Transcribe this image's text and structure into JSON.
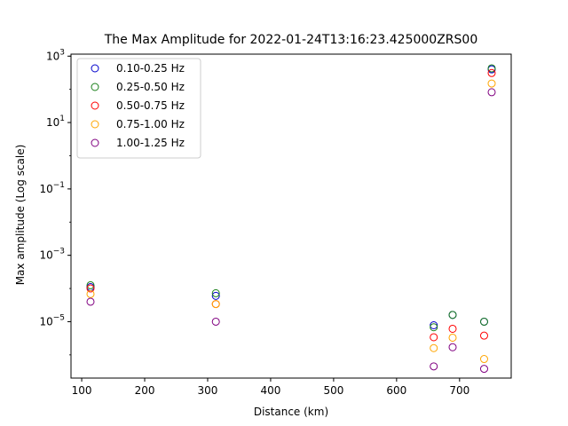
{
  "chart_data": {
    "type": "scatter",
    "title": "The Max Amplitude for 2022-01-24T13:16:23.425000ZRS00",
    "xlabel": "Distance (km)",
    "ylabel": "Max amplitude (Log scale)",
    "xlim": [
      83,
      782
    ],
    "ylim": [
      2e-07,
      1150
    ],
    "yscale": "log",
    "xticks": [
      100,
      200,
      300,
      400,
      500,
      600,
      700
    ],
    "yticks": [
      {
        "value": 1000,
        "base": "10",
        "exp": "3"
      },
      {
        "value": 10,
        "base": "10",
        "exp": "1"
      },
      {
        "value": 0.1,
        "base": "10",
        "exp": "−1"
      },
      {
        "value": 0.001,
        "base": "10",
        "exp": "−3"
      },
      {
        "value": 1e-05,
        "base": "10",
        "exp": "−5"
      }
    ],
    "grid": false,
    "legend_position": "top-left",
    "marker": "open-circle",
    "series": [
      {
        "name": "0.10-0.25 Hz",
        "color": "#0000cc",
        "x": [
          114,
          313,
          659,
          689,
          739,
          751
        ],
        "y": [
          0.00011,
          6e-05,
          7.8e-06,
          1.6e-05,
          1e-05,
          400
        ]
      },
      {
        "name": "0.25-0.50 Hz",
        "color": "#1a7f1a",
        "x": [
          114,
          313,
          659,
          689,
          739,
          751
        ],
        "y": [
          0.000125,
          7.2e-05,
          6.8e-06,
          1.6e-05,
          1e-05,
          430
        ]
      },
      {
        "name": "0.50-0.75 Hz",
        "color": "#ff0000",
        "x": [
          114,
          313,
          659,
          689,
          739,
          751
        ],
        "y": [
          0.0001,
          3.4e-05,
          3.4e-06,
          6.1e-06,
          3.8e-06,
          310
        ]
      },
      {
        "name": "0.75-1.00 Hz",
        "color": "#ffa500",
        "x": [
          114,
          313,
          659,
          689,
          739,
          751
        ],
        "y": [
          6.8e-05,
          3.4e-05,
          1.6e-06,
          3.3e-06,
          7.5e-07,
          150
        ]
      },
      {
        "name": "1.00-1.25 Hz",
        "color": "#800080",
        "x": [
          114,
          313,
          659,
          689,
          739,
          751
        ],
        "y": [
          4e-05,
          1e-05,
          4.5e-07,
          1.7e-06,
          3.8e-07,
          82
        ]
      }
    ]
  }
}
